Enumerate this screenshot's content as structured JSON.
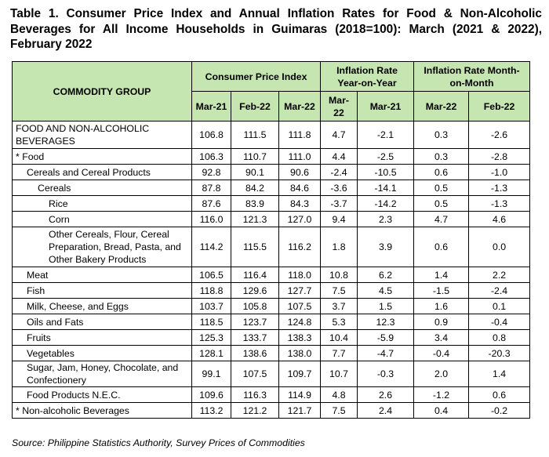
{
  "title": "Table 1. Consumer Price Index and Annual Inflation Rates for Food & Non-Alcoholic Beverages for All Income Households in Guimaras (2018=100): March (2021 & 2022), February 2022",
  "headers": {
    "commodity_group": "COMMODITY GROUP",
    "cpi": "Consumer Price Index",
    "yoy": "Inflation Rate Year-on-Year",
    "mom": "Inflation Rate Month-on-Month",
    "cpi_cols": [
      "Mar-21",
      "Feb-22",
      "Mar-22"
    ],
    "yoy_cols": [
      "Mar-22",
      "Mar-21"
    ],
    "mom_cols": [
      "Mar-22",
      "Feb-22"
    ]
  },
  "rows": [
    {
      "label": "FOOD AND NON-ALCOHOLIC BEVERAGES",
      "indent": 0,
      "values": [
        "106.8",
        "111.5",
        "111.8",
        "4.7",
        "-2.1",
        "0.3",
        "-2.6"
      ]
    },
    {
      "label": "* Food",
      "indent": 0,
      "values": [
        "106.3",
        "110.7",
        "111.0",
        "4.4",
        "-2.5",
        "0.3",
        "-2.8"
      ]
    },
    {
      "label": "Cereals and Cereal Products",
      "indent": 1,
      "values": [
        "92.8",
        "90.1",
        "90.6",
        "-2.4",
        "-10.5",
        "0.6",
        "-1.0"
      ]
    },
    {
      "label": "Cereals",
      "indent": 2,
      "values": [
        "87.8",
        "84.2",
        "84.6",
        "-3.6",
        "-14.1",
        "0.5",
        "-1.3"
      ]
    },
    {
      "label": "Rice",
      "indent": 3,
      "values": [
        "87.6",
        "83.9",
        "84.3",
        "-3.7",
        "-14.2",
        "0.5",
        "-1.3"
      ]
    },
    {
      "label": "Corn",
      "indent": 3,
      "values": [
        "116.0",
        "121.3",
        "127.0",
        "9.4",
        "2.3",
        "4.7",
        "4.6"
      ]
    },
    {
      "label": "Other Cereals, Flour, Cereal Preparation, Bread, Pasta, and Other Bakery Products",
      "indent": 3,
      "values": [
        "114.2",
        "115.5",
        "116.2",
        "1.8",
        "3.9",
        "0.6",
        "0.0"
      ]
    },
    {
      "label": "Meat",
      "indent": 1,
      "values": [
        "106.5",
        "116.4",
        "118.0",
        "10.8",
        "6.2",
        "1.4",
        "2.2"
      ]
    },
    {
      "label": "Fish",
      "indent": 1,
      "values": [
        "118.8",
        "129.6",
        "127.7",
        "7.5",
        "4.5",
        "-1.5",
        "-2.4"
      ]
    },
    {
      "label": "Milk, Cheese, and Eggs",
      "indent": 1,
      "values": [
        "103.7",
        "105.8",
        "107.5",
        "3.7",
        "1.5",
        "1.6",
        "0.1"
      ]
    },
    {
      "label": "Oils and Fats",
      "indent": 1,
      "values": [
        "118.5",
        "123.7",
        "124.8",
        "5.3",
        "12.3",
        "0.9",
        "-0.4"
      ]
    },
    {
      "label": "Fruits",
      "indent": 1,
      "values": [
        "125.3",
        "133.7",
        "138.3",
        "10.4",
        "-5.9",
        "3.4",
        "0.8"
      ]
    },
    {
      "label": "Vegetables",
      "indent": 1,
      "values": [
        "128.1",
        "138.6",
        "138.0",
        "7.7",
        "-4.7",
        "-0.4",
        "-20.3"
      ]
    },
    {
      "label": "Sugar, Jam, Honey, Chocolate, and Confectionery",
      "indent": 1,
      "values": [
        "99.1",
        "107.5",
        "109.7",
        "10.7",
        "-0.3",
        "2.0",
        "1.4"
      ]
    },
    {
      "label": "Food Products N.E.C.",
      "indent": 1,
      "values": [
        "109.6",
        "116.3",
        "114.9",
        "4.8",
        "2.6",
        "-1.2",
        "0.6"
      ]
    },
    {
      "label": "* Non-alcoholic Beverages",
      "indent": 0,
      "values": [
        "113.2",
        "121.2",
        "121.7",
        "7.5",
        "2.4",
        "0.4",
        "-0.2"
      ]
    }
  ],
  "source": "Source: Philippine Statistics Authority, Survey Prices of Commodities",
  "colors": {
    "header_bg": "#c6e6b1",
    "border": "#000000"
  }
}
